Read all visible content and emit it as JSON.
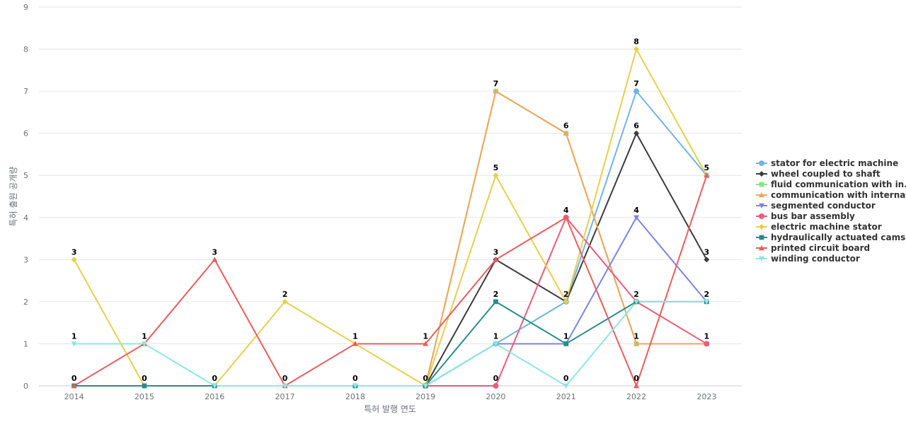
{
  "chart_data": {
    "type": "line",
    "title": "",
    "xlabel": "특허 발행 연도",
    "ylabel": "특허 출원 공개량",
    "ylim": [
      0,
      9
    ],
    "yticks": [
      0,
      1,
      2,
      3,
      4,
      5,
      6,
      7,
      8,
      9
    ],
    "grid": true,
    "legend_position": "right",
    "categories": [
      "2014",
      "2015",
      "2016",
      "2017",
      "2018",
      "2019",
      "2020",
      "2021",
      "2022",
      "2023"
    ],
    "series": [
      {
        "name": "stator for electric machine",
        "color": "#73b3e6",
        "marker": "circle",
        "values": [
          null,
          null,
          null,
          null,
          null,
          0,
          1,
          2,
          7,
          5
        ]
      },
      {
        "name": "wheel coupled to shaft",
        "color": "#3c3c3c",
        "marker": "diamond",
        "values": [
          null,
          null,
          null,
          null,
          null,
          0,
          3,
          2,
          6,
          3
        ]
      },
      {
        "name": "fluid communication with in...",
        "color": "#8be08b",
        "marker": "square",
        "values": [
          null,
          null,
          null,
          null,
          null,
          0,
          7,
          6,
          1,
          1
        ]
      },
      {
        "name": "communication with internal...",
        "color": "#f0a65a",
        "marker": "triangle",
        "values": [
          null,
          null,
          null,
          null,
          null,
          0,
          7,
          6,
          1,
          1
        ]
      },
      {
        "name": "segmented conductor",
        "color": "#7b83e8",
        "marker": "triangle-down",
        "values": [
          null,
          null,
          null,
          null,
          null,
          0,
          1,
          1,
          4,
          2
        ]
      },
      {
        "name": "bus bar assembly",
        "color": "#ea5c7c",
        "marker": "circle",
        "values": [
          null,
          null,
          null,
          null,
          null,
          0,
          0,
          4,
          2,
          1
        ]
      },
      {
        "name": "electric machine stator",
        "color": "#e6cf4e",
        "marker": "diamond",
        "values": [
          3,
          0,
          0,
          2,
          1,
          0,
          5,
          2,
          8,
          5
        ]
      },
      {
        "name": "hydraulically actuated cams...",
        "color": "#2a8c8c",
        "marker": "square",
        "values": [
          0,
          0,
          0,
          null,
          0,
          0,
          2,
          1,
          2,
          2
        ]
      },
      {
        "name": "printed circuit board",
        "color": "#ea5d5d",
        "marker": "triangle",
        "values": [
          0,
          1,
          3,
          0,
          1,
          1,
          3,
          4,
          0,
          5
        ]
      },
      {
        "name": "winding conductor",
        "color": "#8ee6e0",
        "marker": "triangle-down",
        "values": [
          1,
          1,
          0,
          0,
          0,
          0,
          1,
          0,
          2,
          2
        ]
      }
    ],
    "data_labels": [
      {
        "category": "2014",
        "value": 3
      },
      {
        "category": "2014",
        "value": 1
      },
      {
        "category": "2014",
        "value": 0
      },
      {
        "category": "2015",
        "value": 1
      },
      {
        "category": "2015",
        "value": 0
      },
      {
        "category": "2016",
        "value": 3
      },
      {
        "category": "2016",
        "value": 0
      },
      {
        "category": "2017",
        "value": 2
      },
      {
        "category": "2017",
        "value": 0
      },
      {
        "category": "2018",
        "value": 1
      },
      {
        "category": "2018",
        "value": 0
      },
      {
        "category": "2019",
        "value": 1
      },
      {
        "category": "2019",
        "value": 0
      },
      {
        "category": "2020",
        "value": 7
      },
      {
        "category": "2020",
        "value": 5
      },
      {
        "category": "2020",
        "value": 3
      },
      {
        "category": "2020",
        "value": 2
      },
      {
        "category": "2020",
        "value": 1
      },
      {
        "category": "2020",
        "value": 0
      },
      {
        "category": "2021",
        "value": 6
      },
      {
        "category": "2021",
        "value": 4
      },
      {
        "category": "2021",
        "value": 2
      },
      {
        "category": "2021",
        "value": 1
      },
      {
        "category": "2021",
        "value": 0
      },
      {
        "category": "2022",
        "value": 8
      },
      {
        "category": "2022",
        "value": 7
      },
      {
        "category": "2022",
        "value": 6
      },
      {
        "category": "2022",
        "value": 4
      },
      {
        "category": "2022",
        "value": 2
      },
      {
        "category": "2022",
        "value": 1
      },
      {
        "category": "2022",
        "value": 0
      },
      {
        "category": "2023",
        "value": 5
      },
      {
        "category": "2023",
        "value": 3
      },
      {
        "category": "2023",
        "value": 2
      },
      {
        "category": "2023",
        "value": 1
      }
    ]
  }
}
